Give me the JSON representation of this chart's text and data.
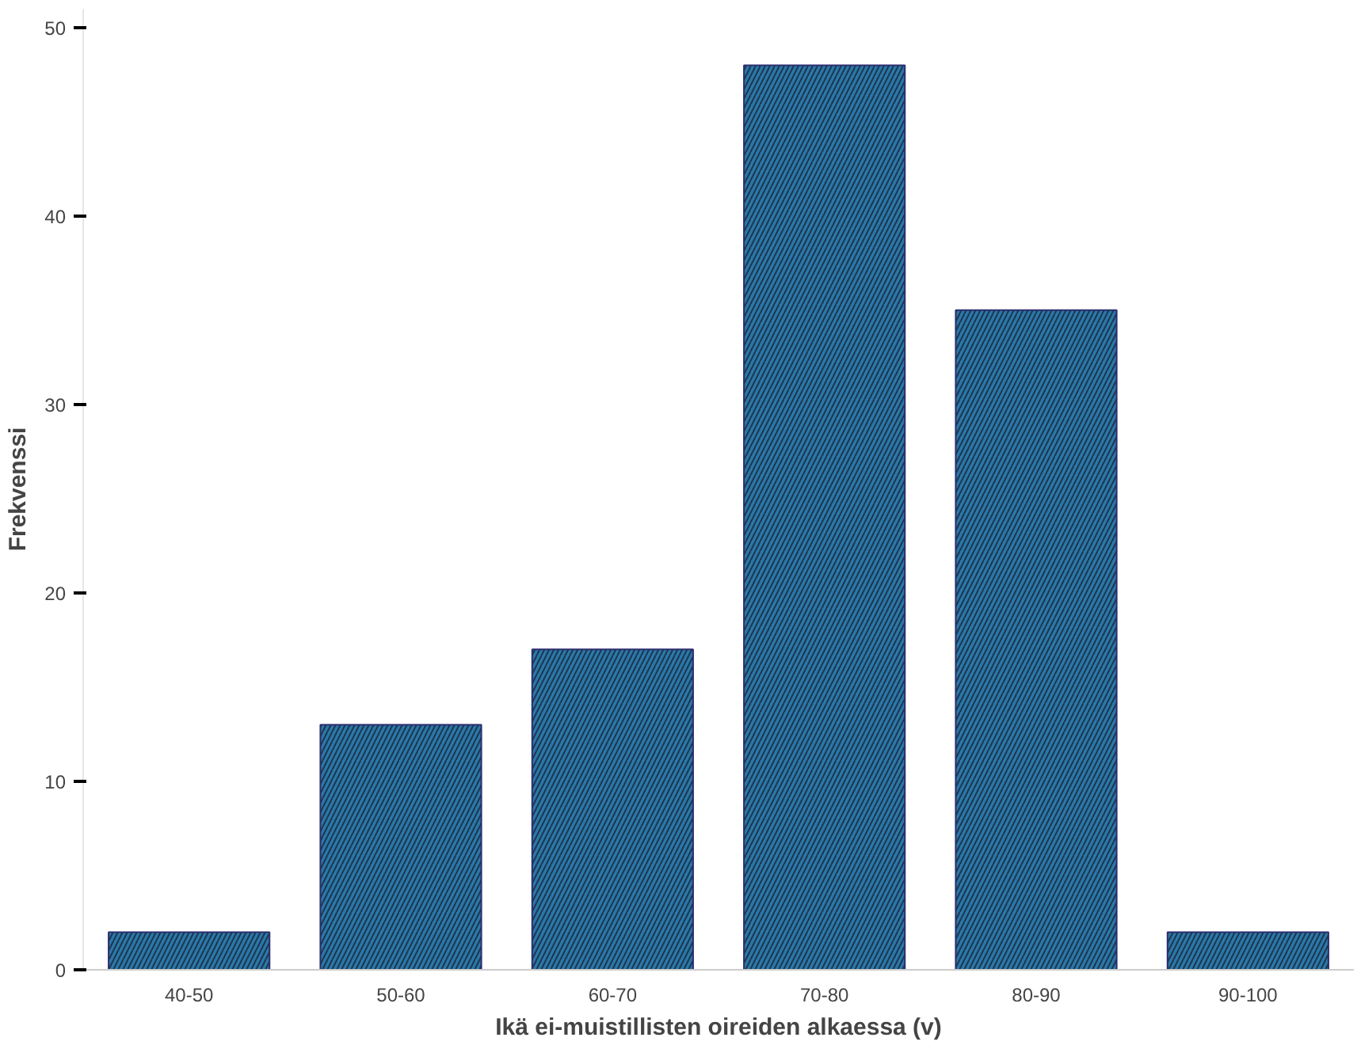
{
  "chart_data": {
    "type": "bar",
    "xlabel": "Ikä ei-muistillisten oireiden alkaessa (v)",
    "ylabel": "Frekvenssi",
    "categories": [
      "40-50",
      "50-60",
      "60-70",
      "70-80",
      "80-90",
      "90-100"
    ],
    "values": [
      2,
      13,
      17,
      48,
      35,
      2
    ],
    "color": "#2a78a8",
    "ylim": [
      0,
      51
    ],
    "yticks": [
      0,
      10,
      20,
      30,
      40,
      50
    ],
    "grid": false
  }
}
